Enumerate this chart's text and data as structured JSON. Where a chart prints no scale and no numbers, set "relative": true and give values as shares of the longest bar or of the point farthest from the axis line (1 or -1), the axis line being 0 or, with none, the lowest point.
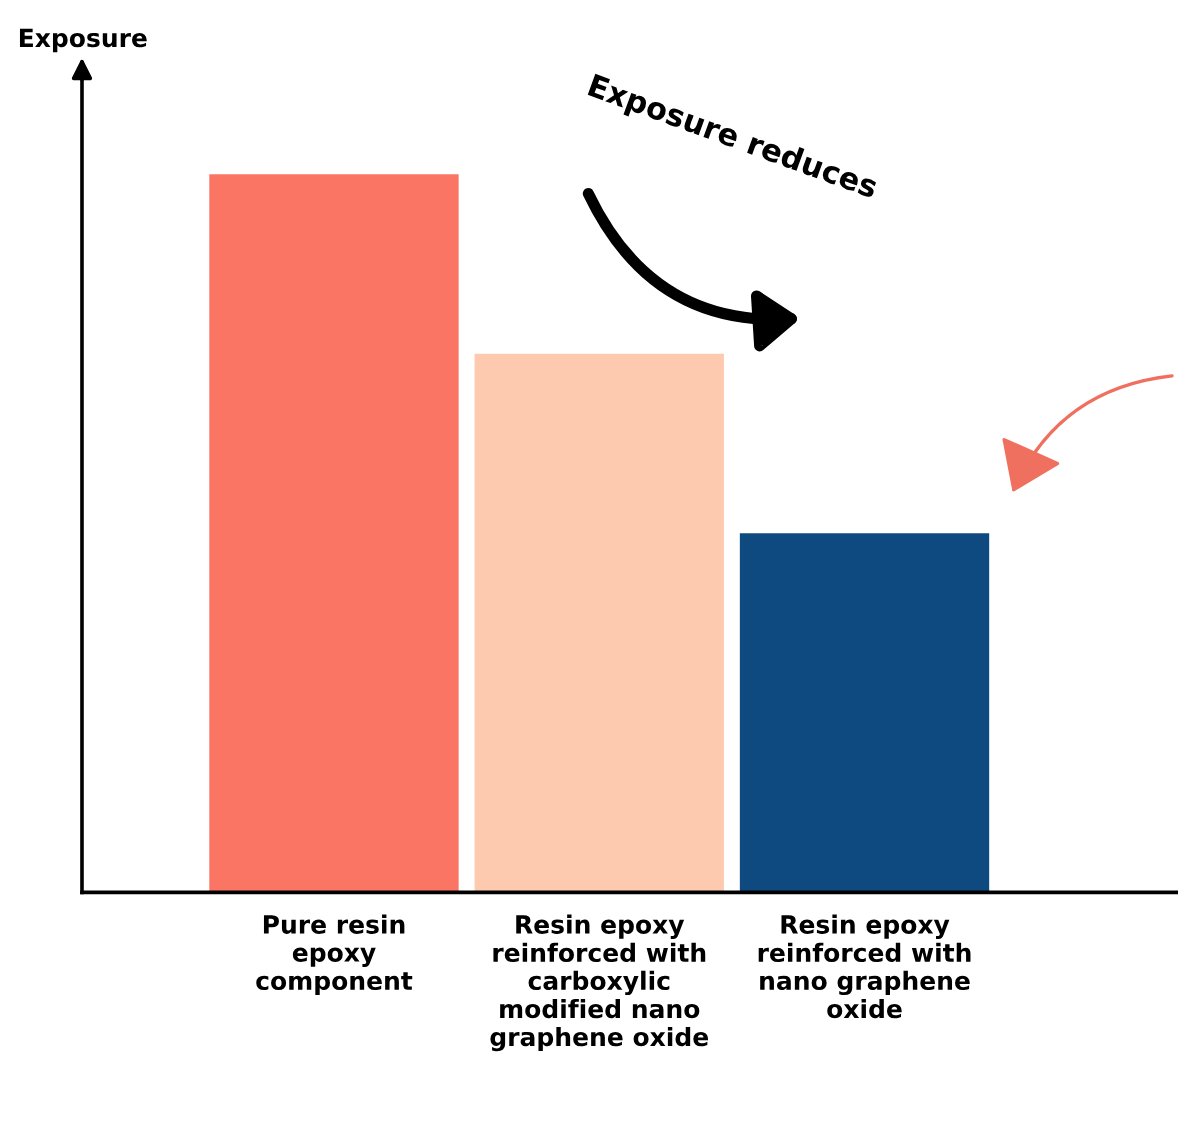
{
  "chart_data": {
    "type": "bar",
    "relative": true,
    "ylabel": "Exposure",
    "categories": [
      "Pure resin\nepoxy\ncomponent",
      "Resin epoxy\nreinforced with\ncarboxylic\nmodified nano\ngraphene oxide",
      "Resin epoxy\nreinforced with\nnano graphene\noxide"
    ],
    "values": [
      1,
      0.75,
      0.5
    ],
    "colors": [
      "#fa7564",
      "#fdcab0",
      "#0e4a80"
    ],
    "annotations": [
      "Exposure reduces"
    ],
    "grid": false,
    "legend": false
  }
}
